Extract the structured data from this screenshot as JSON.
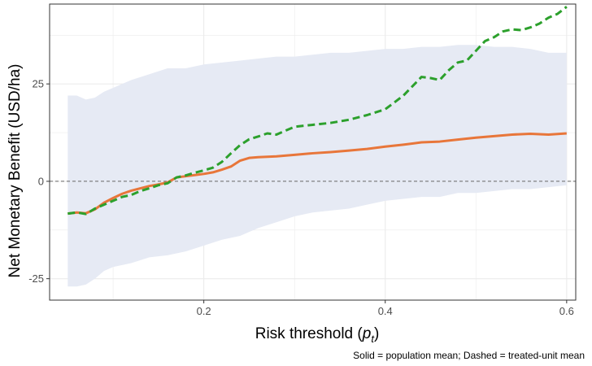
{
  "chart_data": {
    "type": "line",
    "xlabel": "Risk threshold (",
    "xlabel_var": "p",
    "xlabel_sub": "t",
    "xlabel_close": ")",
    "ylabel": "Net Monetary Benefit (USD/ha)",
    "caption": "Solid = population mean; Dashed = treated-unit mean",
    "xlim": [
      0.03,
      0.61
    ],
    "ylim": [
      -30.5,
      45.5
    ],
    "x_ticks": [
      0.2,
      0.4,
      0.6
    ],
    "x_tick_labels": [
      "0.2",
      "0.4",
      "0.6"
    ],
    "y_ticks": [
      -25,
      0,
      25
    ],
    "y_tick_labels": [
      "-25",
      "0",
      "25"
    ],
    "grid": true,
    "reference_line": 0,
    "band": {
      "x": [
        0.05,
        0.06,
        0.07,
        0.08,
        0.09,
        0.1,
        0.12,
        0.14,
        0.16,
        0.18,
        0.2,
        0.22,
        0.24,
        0.26,
        0.28,
        0.3,
        0.32,
        0.34,
        0.36,
        0.38,
        0.4,
        0.42,
        0.44,
        0.46,
        0.48,
        0.5,
        0.52,
        0.54,
        0.56,
        0.58,
        0.6
      ],
      "upper": [
        22,
        22,
        21,
        21.5,
        23,
        24,
        26,
        27.5,
        29,
        29,
        30,
        30.5,
        31,
        31.5,
        32,
        32,
        32.5,
        33,
        33,
        33.5,
        34,
        34,
        34.5,
        34.5,
        35,
        35,
        34.5,
        34.5,
        34,
        33,
        33
      ],
      "lower": [
        -27,
        -27,
        -26.5,
        -25,
        -23,
        -22,
        -21,
        -19.5,
        -19,
        -18,
        -16.5,
        -15,
        -14,
        -12,
        -10.5,
        -9,
        -8,
        -7.5,
        -7,
        -6,
        -5,
        -4.5,
        -4,
        -4,
        -3,
        -3,
        -2.5,
        -2,
        -2,
        -1.5,
        -1
      ]
    },
    "series": [
      {
        "color": "#e8763a",
        "style": "solid",
        "x": [
          0.05,
          0.06,
          0.07,
          0.08,
          0.09,
          0.1,
          0.11,
          0.12,
          0.13,
          0.14,
          0.15,
          0.16,
          0.17,
          0.18,
          0.19,
          0.2,
          0.21,
          0.22,
          0.23,
          0.24,
          0.25,
          0.26,
          0.28,
          0.3,
          0.32,
          0.34,
          0.36,
          0.38,
          0.4,
          0.42,
          0.44,
          0.46,
          0.48,
          0.5,
          0.52,
          0.54,
          0.56,
          0.58,
          0.6
        ],
        "values": [
          -8.3,
          -8.0,
          -8.2,
          -7.2,
          -5.5,
          -4.3,
          -3.2,
          -2.4,
          -1.8,
          -1.2,
          -0.8,
          -0.3,
          1.0,
          1.3,
          1.6,
          1.9,
          2.3,
          3.0,
          3.8,
          5.3,
          6.0,
          6.2,
          6.4,
          6.8,
          7.2,
          7.5,
          7.9,
          8.3,
          8.9,
          9.4,
          10.0,
          10.2,
          10.7,
          11.2,
          11.6,
          12.0,
          12.2,
          12.0,
          12.3
        ]
      },
      {
        "color": "#2ca02c",
        "style": "dashed",
        "x": [
          0.05,
          0.06,
          0.07,
          0.08,
          0.09,
          0.1,
          0.11,
          0.12,
          0.13,
          0.14,
          0.15,
          0.16,
          0.17,
          0.18,
          0.19,
          0.2,
          0.21,
          0.22,
          0.23,
          0.24,
          0.25,
          0.26,
          0.27,
          0.28,
          0.3,
          0.32,
          0.34,
          0.36,
          0.38,
          0.4,
          0.42,
          0.44,
          0.45,
          0.46,
          0.47,
          0.48,
          0.49,
          0.5,
          0.51,
          0.52,
          0.53,
          0.54,
          0.55,
          0.56,
          0.57,
          0.58,
          0.59,
          0.6
        ],
        "values": [
          -8.3,
          -8.0,
          -8.4,
          -7.0,
          -6.0,
          -5.0,
          -4.0,
          -3.5,
          -2.5,
          -1.8,
          -1.0,
          -0.5,
          1.0,
          1.5,
          2.2,
          2.8,
          3.5,
          5.0,
          7.2,
          9.3,
          10.8,
          11.5,
          12.3,
          12.0,
          14.0,
          14.5,
          15.0,
          15.8,
          17.0,
          18.5,
          22.0,
          26.8,
          26.5,
          26.0,
          28.5,
          30.5,
          31.0,
          33.5,
          36.0,
          37.0,
          38.5,
          39.0,
          38.8,
          39.5,
          40.5,
          42.0,
          43.0,
          44.8
        ]
      }
    ]
  }
}
